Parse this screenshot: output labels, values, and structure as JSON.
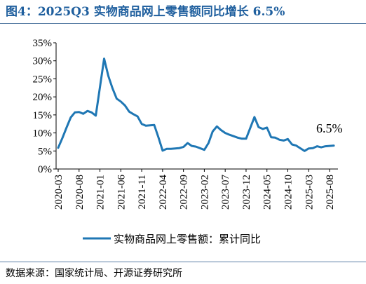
{
  "title": "图4：2025Q3 实物商品网上零售额同比增长 6.5%",
  "source": "数据来源：国家统计局、开源证券研究所",
  "chart_data": {
    "type": "line",
    "title": "图4：2025Q3 实物商品网上零售额同比增长 6.5%",
    "xlabel": "",
    "ylabel": "",
    "ylim": [
      0,
      35
    ],
    "y_ticks": [
      "0%",
      "5%",
      "10%",
      "15%",
      "20%",
      "25%",
      "30%",
      "35%"
    ],
    "y_tick_values": [
      0,
      5,
      10,
      15,
      20,
      25,
      30,
      35
    ],
    "x_ticks": [
      "2020-03",
      "2020-08",
      "2021-01",
      "2021-06",
      "2021-11",
      "2022-04",
      "2022-09",
      "2023-02",
      "2023-07",
      "2023-12",
      "2024-05",
      "2024-10",
      "2025-03",
      "2025-08"
    ],
    "grid": false,
    "legend_position": "bottom",
    "annotation": "6.5%",
    "colors": {
      "line": "#1f77b4",
      "title": "#1f5f9e"
    },
    "series": [
      {
        "name": "实物商品网上零售额：累计同比",
        "x": [
          "2020-03",
          "2020-04",
          "2020-05",
          "2020-06",
          "2020-07",
          "2020-08",
          "2020-09",
          "2020-10",
          "2020-11",
          "2020-12",
          "2021-02",
          "2021-03",
          "2021-04",
          "2021-05",
          "2021-06",
          "2021-07",
          "2021-08",
          "2021-09",
          "2021-10",
          "2021-11",
          "2021-12",
          "2022-02",
          "2022-03",
          "2022-04",
          "2022-05",
          "2022-06",
          "2022-07",
          "2022-08",
          "2022-09",
          "2022-10",
          "2022-11",
          "2022-12",
          "2023-02",
          "2023-03",
          "2023-04",
          "2023-05",
          "2023-06",
          "2023-07",
          "2023-08",
          "2023-09",
          "2023-10",
          "2023-11",
          "2023-12",
          "2024-02",
          "2024-03",
          "2024-04",
          "2024-05",
          "2024-06",
          "2024-07",
          "2024-08",
          "2024-09",
          "2024-10",
          "2024-11",
          "2024-12",
          "2025-02",
          "2025-03",
          "2025-04",
          "2025-05",
          "2025-06",
          "2025-07",
          "2025-08",
          "2025-09"
        ],
        "values": [
          5.9,
          8.6,
          11.5,
          14.3,
          15.7,
          15.8,
          15.3,
          16.1,
          15.7,
          14.8,
          30.6,
          25.8,
          22.4,
          19.5,
          18.7,
          17.6,
          15.9,
          15.2,
          14.6,
          12.5,
          12.0,
          12.2,
          8.8,
          5.1,
          5.6,
          5.6,
          5.7,
          5.8,
          6.1,
          7.2,
          6.4,
          6.2,
          5.3,
          7.2,
          10.4,
          11.8,
          10.8,
          10.0,
          9.5,
          9.1,
          8.7,
          8.4,
          8.4,
          14.4,
          11.6,
          11.1,
          11.5,
          8.8,
          8.7,
          8.1,
          7.9,
          8.3,
          6.8,
          6.5,
          5.0,
          5.7,
          5.8,
          6.3,
          6.0,
          6.3,
          6.4,
          6.5
        ]
      }
    ]
  }
}
